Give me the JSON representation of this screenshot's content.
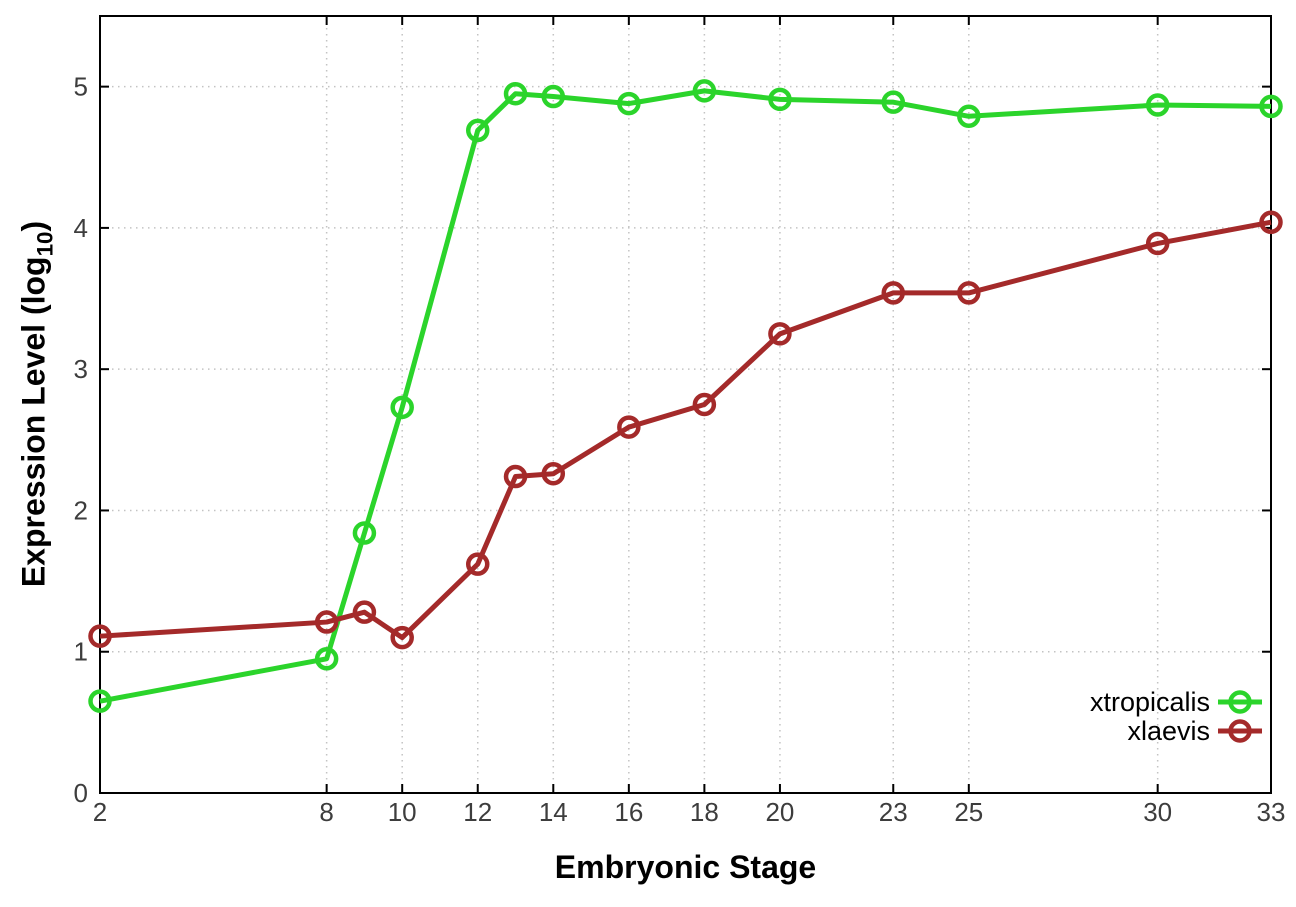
{
  "chart_data": {
    "type": "line",
    "title": "",
    "xlabel": "Embryonic Stage",
    "ylabel": "Expression Level (log10)",
    "ylabel_parts": {
      "main": "Expression Level (log",
      "sub": "10",
      "close": ")"
    },
    "x": [
      2,
      8,
      9,
      10,
      12,
      13,
      14,
      16,
      18,
      20,
      23,
      25,
      30,
      33
    ],
    "series": [
      {
        "name": "xtropicalis",
        "color": "#2bd42b",
        "values": [
          0.65,
          0.95,
          1.84,
          2.73,
          4.69,
          4.95,
          4.93,
          4.88,
          4.97,
          4.91,
          4.89,
          4.79,
          4.87,
          4.86
        ]
      },
      {
        "name": "xlaevis",
        "color": "#a42a2a",
        "values": [
          1.11,
          1.21,
          1.28,
          1.1,
          1.62,
          2.24,
          2.26,
          2.59,
          2.75,
          3.25,
          3.54,
          3.54,
          3.89,
          4.04
        ]
      }
    ],
    "xlim": [
      2,
      33
    ],
    "ylim": [
      0,
      5.5
    ],
    "x_ticks": [
      2,
      8,
      10,
      12,
      14,
      16,
      18,
      20,
      23,
      25,
      30,
      33
    ],
    "y_ticks": [
      0,
      1,
      2,
      3,
      4,
      5
    ],
    "grid": true,
    "legend_position": "inside-bottom-right",
    "marker": "open-circle"
  },
  "colors": {
    "background": "#ffffff",
    "border": "#000000",
    "grid": "#c3c3c3",
    "tick_text": "#3d3d3d",
    "legend_text": "#000000"
  }
}
